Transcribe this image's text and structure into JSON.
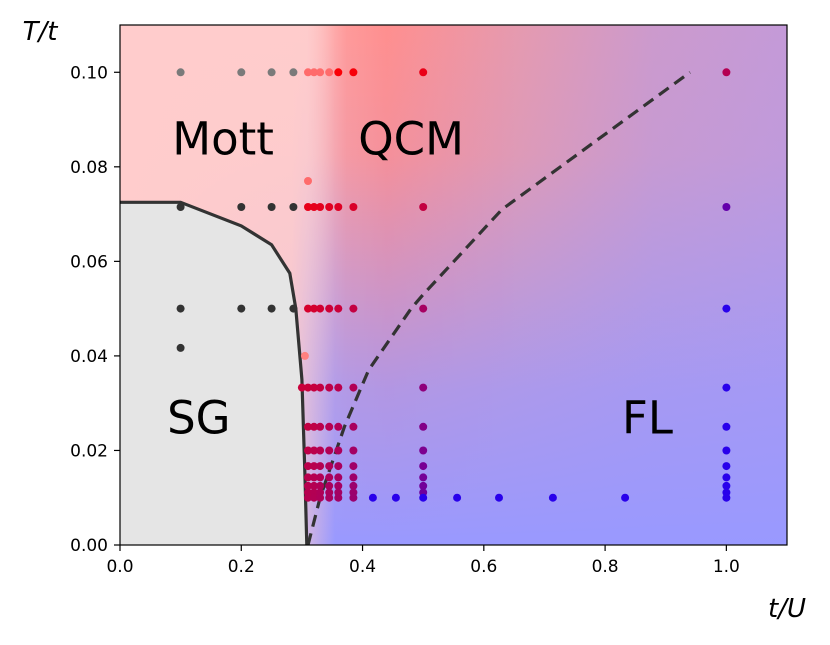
{
  "chart_data": {
    "type": "scatter",
    "title": "",
    "xlabel": "t/U",
    "ylabel": "T/t",
    "xlim": [
      0.0,
      1.1
    ],
    "ylim": [
      0.0,
      0.11
    ],
    "xticks": [
      "0.0",
      "0.2",
      "0.4",
      "0.6",
      "0.8",
      "1.0"
    ],
    "yticks": [
      "0.00",
      "0.02",
      "0.04",
      "0.06",
      "0.08",
      "0.10"
    ],
    "regions": [
      {
        "name": "Mott",
        "x": 0.17,
        "y": 0.086
      },
      {
        "name": "QCM",
        "x": 0.48,
        "y": 0.086
      },
      {
        "name": "SG",
        "x": 0.13,
        "y": 0.027
      },
      {
        "name": "FL",
        "x": 0.87,
        "y": 0.027
      }
    ],
    "spin_glass_boundary": {
      "style": "solid",
      "x": [
        0.0,
        0.1,
        0.2,
        0.25,
        0.28,
        0.29,
        0.3,
        0.305,
        0.308
      ],
      "y": [
        0.0725,
        0.0725,
        0.0675,
        0.0635,
        0.0575,
        0.05,
        0.035,
        0.015,
        0.0
      ]
    },
    "crossover_line": {
      "style": "dashed",
      "x": [
        0.31,
        0.33,
        0.37,
        0.41,
        0.48,
        0.5,
        0.63,
        0.94
      ],
      "y": [
        0.0,
        0.01,
        0.025,
        0.037,
        0.05,
        0.053,
        0.071,
        0.1
      ]
    },
    "points": [
      {
        "x": 0.1,
        "y": 0.1
      },
      {
        "x": 0.2,
        "y": 0.1
      },
      {
        "x": 0.25,
        "y": 0.1
      },
      {
        "x": 0.286,
        "y": 0.1
      },
      {
        "x": 0.31,
        "y": 0.1
      },
      {
        "x": 0.32,
        "y": 0.1
      },
      {
        "x": 0.33,
        "y": 0.1
      },
      {
        "x": 0.345,
        "y": 0.1
      },
      {
        "x": 0.36,
        "y": 0.1
      },
      {
        "x": 0.385,
        "y": 0.1
      },
      {
        "x": 0.5,
        "y": 0.1
      },
      {
        "x": 1.0,
        "y": 0.1
      },
      {
        "x": 0.31,
        "y": 0.077
      },
      {
        "x": 0.1,
        "y": 0.0715
      },
      {
        "x": 0.2,
        "y": 0.0715
      },
      {
        "x": 0.25,
        "y": 0.0715
      },
      {
        "x": 0.286,
        "y": 0.0715
      },
      {
        "x": 0.31,
        "y": 0.0715
      },
      {
        "x": 0.32,
        "y": 0.0715
      },
      {
        "x": 0.33,
        "y": 0.0715
      },
      {
        "x": 0.345,
        "y": 0.0715
      },
      {
        "x": 0.36,
        "y": 0.0715
      },
      {
        "x": 0.385,
        "y": 0.0715
      },
      {
        "x": 0.5,
        "y": 0.0715
      },
      {
        "x": 1.0,
        "y": 0.0715
      },
      {
        "x": 0.1,
        "y": 0.05
      },
      {
        "x": 0.2,
        "y": 0.05
      },
      {
        "x": 0.25,
        "y": 0.05
      },
      {
        "x": 0.286,
        "y": 0.05
      },
      {
        "x": 0.31,
        "y": 0.05
      },
      {
        "x": 0.32,
        "y": 0.05
      },
      {
        "x": 0.33,
        "y": 0.05
      },
      {
        "x": 0.345,
        "y": 0.05
      },
      {
        "x": 0.36,
        "y": 0.05
      },
      {
        "x": 0.385,
        "y": 0.05
      },
      {
        "x": 0.5,
        "y": 0.05
      },
      {
        "x": 1.0,
        "y": 0.05
      },
      {
        "x": 0.1,
        "y": 0.0417
      },
      {
        "x": 0.305,
        "y": 0.04
      },
      {
        "x": 0.3,
        "y": 0.0333
      },
      {
        "x": 0.31,
        "y": 0.0333
      },
      {
        "x": 0.32,
        "y": 0.0333
      },
      {
        "x": 0.33,
        "y": 0.0333
      },
      {
        "x": 0.345,
        "y": 0.0333
      },
      {
        "x": 0.36,
        "y": 0.0333
      },
      {
        "x": 0.385,
        "y": 0.0333
      },
      {
        "x": 0.5,
        "y": 0.0333
      },
      {
        "x": 1.0,
        "y": 0.0333
      },
      {
        "x": 0.31,
        "y": 0.025
      },
      {
        "x": 0.32,
        "y": 0.025
      },
      {
        "x": 0.33,
        "y": 0.025
      },
      {
        "x": 0.345,
        "y": 0.025
      },
      {
        "x": 0.36,
        "y": 0.025
      },
      {
        "x": 0.385,
        "y": 0.025
      },
      {
        "x": 0.5,
        "y": 0.025
      },
      {
        "x": 1.0,
        "y": 0.025
      },
      {
        "x": 0.31,
        "y": 0.02
      },
      {
        "x": 0.32,
        "y": 0.02
      },
      {
        "x": 0.33,
        "y": 0.02
      },
      {
        "x": 0.345,
        "y": 0.02
      },
      {
        "x": 0.36,
        "y": 0.02
      },
      {
        "x": 0.385,
        "y": 0.02
      },
      {
        "x": 0.5,
        "y": 0.02
      },
      {
        "x": 1.0,
        "y": 0.02
      },
      {
        "x": 0.31,
        "y": 0.0167
      },
      {
        "x": 0.32,
        "y": 0.0167
      },
      {
        "x": 0.33,
        "y": 0.0167
      },
      {
        "x": 0.345,
        "y": 0.0167
      },
      {
        "x": 0.36,
        "y": 0.0167
      },
      {
        "x": 0.385,
        "y": 0.0167
      },
      {
        "x": 0.5,
        "y": 0.0167
      },
      {
        "x": 1.0,
        "y": 0.0167
      },
      {
        "x": 0.31,
        "y": 0.0143
      },
      {
        "x": 0.32,
        "y": 0.0143
      },
      {
        "x": 0.33,
        "y": 0.0143
      },
      {
        "x": 0.345,
        "y": 0.0143
      },
      {
        "x": 0.36,
        "y": 0.0143
      },
      {
        "x": 0.385,
        "y": 0.0143
      },
      {
        "x": 0.5,
        "y": 0.0143
      },
      {
        "x": 1.0,
        "y": 0.0143
      },
      {
        "x": 0.31,
        "y": 0.0125
      },
      {
        "x": 0.32,
        "y": 0.0125
      },
      {
        "x": 0.33,
        "y": 0.0125
      },
      {
        "x": 0.345,
        "y": 0.0125
      },
      {
        "x": 0.36,
        "y": 0.0125
      },
      {
        "x": 0.385,
        "y": 0.0125
      },
      {
        "x": 0.5,
        "y": 0.0125
      },
      {
        "x": 1.0,
        "y": 0.0125
      },
      {
        "x": 0.31,
        "y": 0.0111
      },
      {
        "x": 0.32,
        "y": 0.0111
      },
      {
        "x": 0.33,
        "y": 0.0111
      },
      {
        "x": 0.345,
        "y": 0.0111
      },
      {
        "x": 0.36,
        "y": 0.0111
      },
      {
        "x": 0.385,
        "y": 0.0111
      },
      {
        "x": 0.5,
        "y": 0.0111
      },
      {
        "x": 1.0,
        "y": 0.0111
      },
      {
        "x": 0.31,
        "y": 0.01
      },
      {
        "x": 0.32,
        "y": 0.01
      },
      {
        "x": 0.33,
        "y": 0.01
      },
      {
        "x": 0.345,
        "y": 0.01
      },
      {
        "x": 0.36,
        "y": 0.01
      },
      {
        "x": 0.385,
        "y": 0.01
      },
      {
        "x": 0.417,
        "y": 0.01
      },
      {
        "x": 0.455,
        "y": 0.01
      },
      {
        "x": 0.5,
        "y": 0.01
      },
      {
        "x": 0.556,
        "y": 0.01
      },
      {
        "x": 0.625,
        "y": 0.01
      },
      {
        "x": 0.714,
        "y": 0.01
      },
      {
        "x": 0.833,
        "y": 0.01
      },
      {
        "x": 1.0,
        "y": 0.01
      }
    ],
    "colors": {
      "mott": "#ffd0d0",
      "qcm": "#ff8c8c",
      "fl": "#9999ff",
      "spin_glass": "#e5e5e5",
      "line": "#333333"
    }
  }
}
